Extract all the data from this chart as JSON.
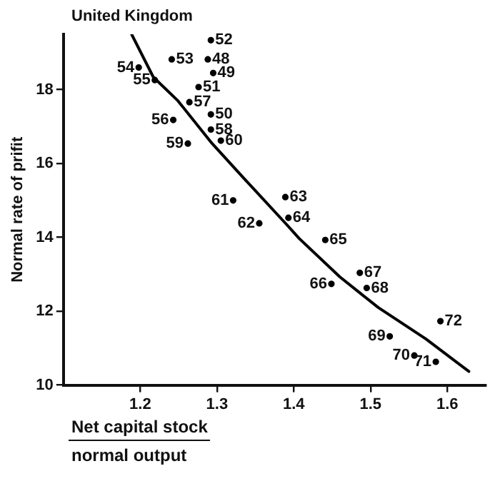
{
  "chart_data": {
    "type": "scatter",
    "title": "United Kingdom",
    "xlabel": "Net capital stock\nnormal output",
    "ylabel": "Normal rate of prifit",
    "xlim": [
      1.1,
      1.65
    ],
    "ylim": [
      10,
      19.5
    ],
    "xticks": [
      1.2,
      1.3,
      1.4,
      1.5,
      1.6
    ],
    "yticks": [
      10,
      12,
      14,
      16,
      18
    ],
    "grid": false,
    "legend": false,
    "marker": "circle",
    "series": [
      {
        "color": "#000000",
        "x": [
          1.288,
          1.295,
          1.292,
          1.276,
          1.292,
          1.241,
          1.198,
          1.219,
          1.243,
          1.264,
          1.292,
          1.262,
          1.305,
          1.321,
          1.355,
          1.389,
          1.393,
          1.441,
          1.449,
          1.486,
          1.495,
          1.525,
          1.557,
          1.585,
          1.591
        ],
        "values": [
          18.82,
          18.45,
          17.33,
          18.07,
          19.34,
          18.82,
          18.6,
          18.26,
          17.18,
          17.66,
          16.92,
          16.54,
          16.62,
          15.0,
          14.38,
          15.09,
          14.53,
          13.93,
          12.74,
          13.04,
          12.63,
          11.32,
          10.8,
          10.63,
          11.73
        ]
      },
      {
        "type": "line",
        "color": "#000000",
        "line_style": "solid",
        "marker": "none",
        "x": [
          1.189,
          1.217,
          1.249,
          1.292,
          1.335,
          1.391,
          1.407,
          1.46,
          1.51,
          1.572,
          1.628
        ],
        "values": [
          19.49,
          18.34,
          17.7,
          16.58,
          15.6,
          14.34,
          13.97,
          12.93,
          12.1,
          11.25,
          10.37
        ]
      }
    ],
    "annotations": [
      {
        "text": "48",
        "x": 1.288,
        "y": 18.82
      },
      {
        "text": "49",
        "x": 1.295,
        "y": 18.45
      },
      {
        "text": "50",
        "x": 1.292,
        "y": 17.33
      },
      {
        "text": "51",
        "x": 1.276,
        "y": 18.07
      },
      {
        "text": "52",
        "x": 1.292,
        "y": 19.34
      },
      {
        "text": "53",
        "x": 1.241,
        "y": 18.82
      },
      {
        "text": "54",
        "x": 1.198,
        "y": 18.6
      },
      {
        "text": "55",
        "x": 1.219,
        "y": 18.26
      },
      {
        "text": "56",
        "x": 1.243,
        "y": 17.18
      },
      {
        "text": "57",
        "x": 1.264,
        "y": 17.66
      },
      {
        "text": "58",
        "x": 1.292,
        "y": 16.92
      },
      {
        "text": "59",
        "x": 1.262,
        "y": 16.54
      },
      {
        "text": "60",
        "x": 1.305,
        "y": 16.62
      },
      {
        "text": "61",
        "x": 1.321,
        "y": 15.0
      },
      {
        "text": "62",
        "x": 1.355,
        "y": 14.38
      },
      {
        "text": "63",
        "x": 1.389,
        "y": 15.09
      },
      {
        "text": "64",
        "x": 1.393,
        "y": 14.53
      },
      {
        "text": "65",
        "x": 1.441,
        "y": 13.93
      },
      {
        "text": "66",
        "x": 1.449,
        "y": 12.74
      },
      {
        "text": "67",
        "x": 1.486,
        "y": 13.04
      },
      {
        "text": "68",
        "x": 1.495,
        "y": 12.63
      },
      {
        "text": "69",
        "x": 1.525,
        "y": 11.32
      },
      {
        "text": "70",
        "x": 1.557,
        "y": 10.8
      },
      {
        "text": "71",
        "x": 1.585,
        "y": 10.63
      },
      {
        "text": "72",
        "x": 1.591,
        "y": 11.73
      }
    ]
  }
}
